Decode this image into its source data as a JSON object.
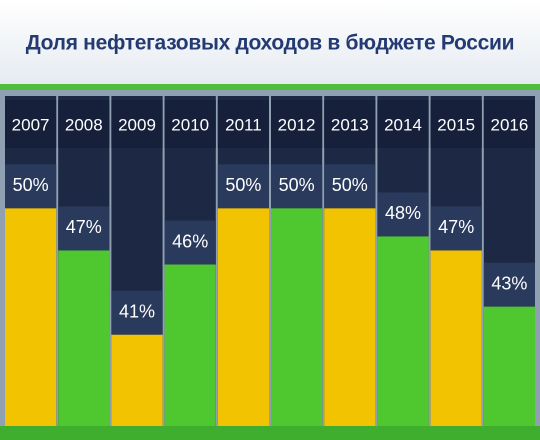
{
  "chart_data": {
    "type": "bar",
    "title": "Доля нефтегазовых доходов  в бюджете России",
    "categories": [
      "2007",
      "2008",
      "2009",
      "2010",
      "2011",
      "2012",
      "2013",
      "2014",
      "2015",
      "2016"
    ],
    "values": [
      50,
      47,
      41,
      46,
      50,
      50,
      50,
      48,
      47,
      43
    ],
    "value_labels": [
      "50%",
      "47%",
      "41%",
      "46%",
      "50%",
      "50%",
      "50%",
      "48%",
      "47%",
      "43%"
    ],
    "colors": [
      "#f2c300",
      "#4fc72e",
      "#f2c300",
      "#4fc72e",
      "#f2c300",
      "#4fc72e",
      "#f2c300",
      "#4fc72e",
      "#f2c300",
      "#4fc72e"
    ],
    "ylim": [
      34.5,
      58
    ]
  }
}
